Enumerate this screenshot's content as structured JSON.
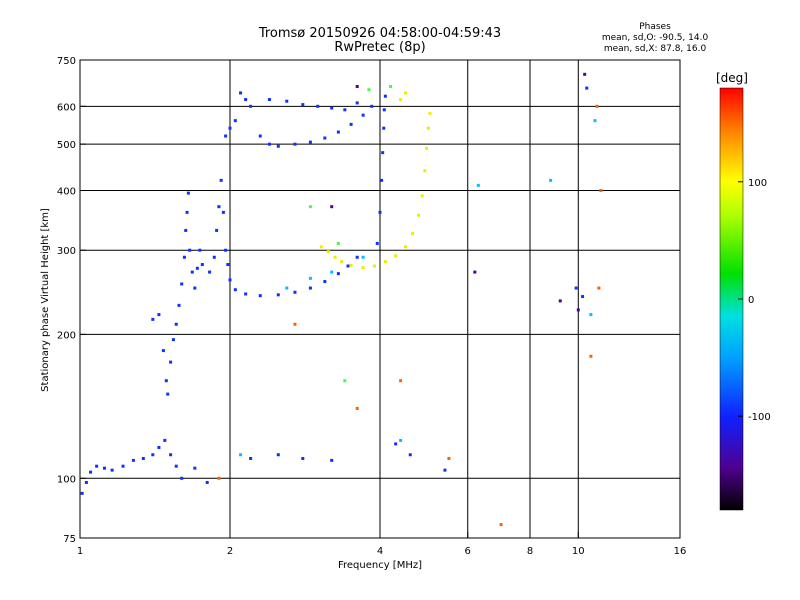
{
  "header": {
    "title_line1": "Tromsø 20150926 04:58:00-04:59:43",
    "title_line2": "RwPretec (8p)"
  },
  "phase_info": {
    "label": "Phases",
    "line_o": "mean, sd,O: -90.5, 14.0",
    "line_x": "mean, sd,X:  87.8, 16.0"
  },
  "colorbar": {
    "unit": "[deg]",
    "ticks": [
      "100",
      "0",
      "-100"
    ],
    "tick_values": [
      100,
      0,
      -100
    ],
    "range": [
      -180,
      180
    ],
    "colormap": "rainbow"
  },
  "chart_data": {
    "type": "scatter",
    "title": "Tromsø 20150926 04:58:00-04:59:43",
    "subtitle": "RwPretec (8p)",
    "xlabel": "Frequency [MHz]",
    "ylabel": "Stationary phase Virtual Height [km]",
    "xscale": "log",
    "yscale": "log",
    "xlim": [
      1,
      16
    ],
    "ylim": [
      75,
      750
    ],
    "xticks": [
      1,
      2,
      4,
      6,
      8,
      10,
      16
    ],
    "xtick_labels": [
      "1",
      "2",
      "4",
      "6",
      "8",
      "10",
      "16"
    ],
    "xgrid": [
      2,
      4,
      6,
      8,
      10
    ],
    "yticks": [
      75,
      100,
      200,
      300,
      400,
      500,
      600,
      750
    ],
    "ytick_labels": [
      "75",
      "100",
      "200",
      "300",
      "400",
      "500",
      "600",
      "750"
    ],
    "ygrid": [
      100,
      200,
      300,
      400,
      500,
      600
    ],
    "series": [
      {
        "phase": -90,
        "color": "#1030ff",
        "points": [
          [
            1.01,
            93
          ],
          [
            1.03,
            98
          ],
          [
            1.05,
            103
          ],
          [
            1.08,
            106
          ],
          [
            1.12,
            105
          ],
          [
            1.16,
            104
          ],
          [
            1.22,
            106
          ],
          [
            1.28,
            109
          ],
          [
            1.34,
            110
          ],
          [
            1.4,
            112
          ],
          [
            1.44,
            116
          ],
          [
            1.48,
            120
          ],
          [
            1.52,
            112
          ],
          [
            1.56,
            106
          ],
          [
            1.4,
            215
          ],
          [
            1.44,
            220
          ],
          [
            1.47,
            185
          ],
          [
            1.49,
            160
          ],
          [
            1.5,
            150
          ],
          [
            1.52,
            175
          ],
          [
            1.54,
            195
          ],
          [
            1.56,
            210
          ],
          [
            1.58,
            230
          ],
          [
            1.6,
            255
          ],
          [
            1.62,
            290
          ],
          [
            1.63,
            330
          ],
          [
            1.64,
            360
          ],
          [
            1.65,
            395
          ],
          [
            1.66,
            300
          ],
          [
            1.68,
            270
          ],
          [
            1.7,
            250
          ],
          [
            1.72,
            275
          ],
          [
            1.74,
            300
          ],
          [
            1.76,
            280
          ],
          [
            1.82,
            270
          ],
          [
            1.86,
            290
          ],
          [
            1.88,
            330
          ],
          [
            1.9,
            370
          ],
          [
            1.92,
            420
          ],
          [
            1.94,
            360
          ],
          [
            1.96,
            300
          ],
          [
            1.98,
            280
          ],
          [
            2.0,
            260
          ],
          [
            2.05,
            248
          ],
          [
            2.15,
            243
          ],
          [
            2.3,
            241
          ],
          [
            2.5,
            242
          ],
          [
            2.7,
            245
          ],
          [
            2.9,
            250
          ],
          [
            3.1,
            258
          ],
          [
            3.3,
            268
          ],
          [
            3.45,
            278
          ],
          [
            3.6,
            290
          ],
          [
            1.96,
            520
          ],
          [
            2.0,
            540
          ],
          [
            2.05,
            560
          ],
          [
            2.1,
            640
          ],
          [
            2.15,
            620
          ],
          [
            2.2,
            600
          ],
          [
            2.3,
            520
          ],
          [
            2.4,
            500
          ],
          [
            2.5,
            495
          ],
          [
            2.7,
            500
          ],
          [
            2.9,
            505
          ],
          [
            3.1,
            515
          ],
          [
            3.3,
            530
          ],
          [
            3.5,
            550
          ],
          [
            3.7,
            575
          ],
          [
            3.85,
            600
          ],
          [
            3.95,
            310
          ],
          [
            4.0,
            360
          ],
          [
            4.03,
            420
          ],
          [
            4.05,
            480
          ],
          [
            4.07,
            540
          ],
          [
            4.08,
            590
          ],
          [
            4.1,
            630
          ],
          [
            2.4,
            620
          ],
          [
            2.6,
            615
          ],
          [
            2.8,
            605
          ],
          [
            3.0,
            600
          ],
          [
            3.2,
            595
          ],
          [
            3.4,
            590
          ],
          [
            3.6,
            610
          ],
          [
            1.6,
            100
          ],
          [
            1.7,
            105
          ],
          [
            1.8,
            98
          ],
          [
            2.2,
            110
          ],
          [
            2.5,
            112
          ],
          [
            2.8,
            110
          ],
          [
            3.2,
            109
          ],
          [
            4.3,
            118
          ],
          [
            4.6,
            112
          ],
          [
            5.4,
            104
          ],
          [
            10.4,
            655
          ],
          [
            9.9,
            250
          ],
          [
            10.2,
            240
          ]
        ]
      },
      {
        "phase": 90,
        "color": "#e8f000",
        "points": [
          [
            3.05,
            305
          ],
          [
            3.15,
            298
          ],
          [
            3.25,
            290
          ],
          [
            3.35,
            284
          ],
          [
            3.5,
            279
          ],
          [
            3.7,
            276
          ],
          [
            3.9,
            278
          ],
          [
            4.1,
            284
          ],
          [
            4.3,
            292
          ],
          [
            4.5,
            305
          ],
          [
            4.65,
            325
          ],
          [
            4.78,
            355
          ],
          [
            4.86,
            390
          ],
          [
            4.92,
            440
          ],
          [
            4.96,
            490
          ],
          [
            5.0,
            540
          ],
          [
            5.04,
            580
          ],
          [
            4.4,
            620
          ],
          [
            4.5,
            640
          ]
        ]
      },
      {
        "phase": -30,
        "color": "#00c0ff",
        "points": [
          [
            2.1,
            112
          ],
          [
            2.6,
            250
          ],
          [
            2.9,
            262
          ],
          [
            3.2,
            270
          ],
          [
            3.7,
            290
          ],
          [
            4.4,
            120
          ],
          [
            6.3,
            410
          ],
          [
            8.8,
            420
          ],
          [
            10.8,
            560
          ],
          [
            10.6,
            220
          ]
        ]
      },
      {
        "phase": 50,
        "color": "#40ff40",
        "points": [
          [
            2.9,
            370
          ],
          [
            3.3,
            310
          ],
          [
            3.4,
            160
          ],
          [
            3.8,
            650
          ],
          [
            4.2,
            660
          ]
        ]
      },
      {
        "phase": 150,
        "color": "#ff6000",
        "points": [
          [
            1.9,
            100
          ],
          [
            2.7,
            210
          ],
          [
            3.6,
            140
          ],
          [
            4.4,
            160
          ],
          [
            5.5,
            110
          ],
          [
            10.6,
            180
          ],
          [
            11.0,
            250
          ],
          [
            7.0,
            80
          ],
          [
            10.9,
            600
          ],
          [
            11.1,
            400
          ]
        ]
      },
      {
        "phase": -150,
        "color": "#5000a0",
        "points": [
          [
            3.2,
            370
          ],
          [
            3.6,
            660
          ],
          [
            6.2,
            270
          ],
          [
            9.2,
            235
          ],
          [
            10.0,
            225
          ],
          [
            10.3,
            700
          ]
        ]
      }
    ]
  }
}
